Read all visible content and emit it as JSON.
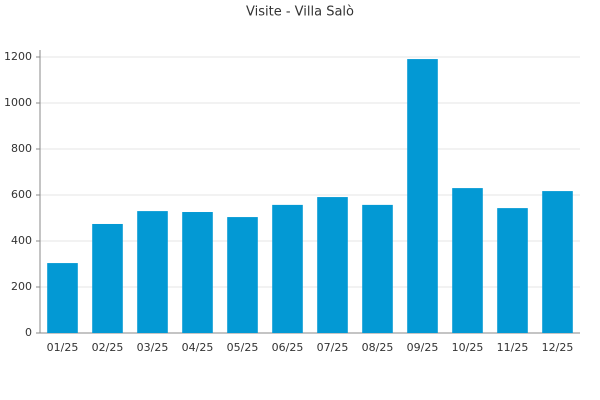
{
  "chart_data": {
    "type": "bar",
    "title": "Visite - Villa Salò",
    "categories": [
      "01/25",
      "02/25",
      "03/25",
      "04/25",
      "05/25",
      "06/25",
      "07/25",
      "08/25",
      "09/25",
      "10/25",
      "11/25",
      "12/25"
    ],
    "values": [
      304,
      474,
      530,
      526,
      504,
      557,
      591,
      557,
      1191,
      630,
      543,
      617
    ],
    "color": "#0399d4",
    "ylim": [
      0,
      1200
    ],
    "yticks": [
      0,
      200,
      400,
      600,
      800,
      1000,
      1200
    ],
    "grid": true
  }
}
